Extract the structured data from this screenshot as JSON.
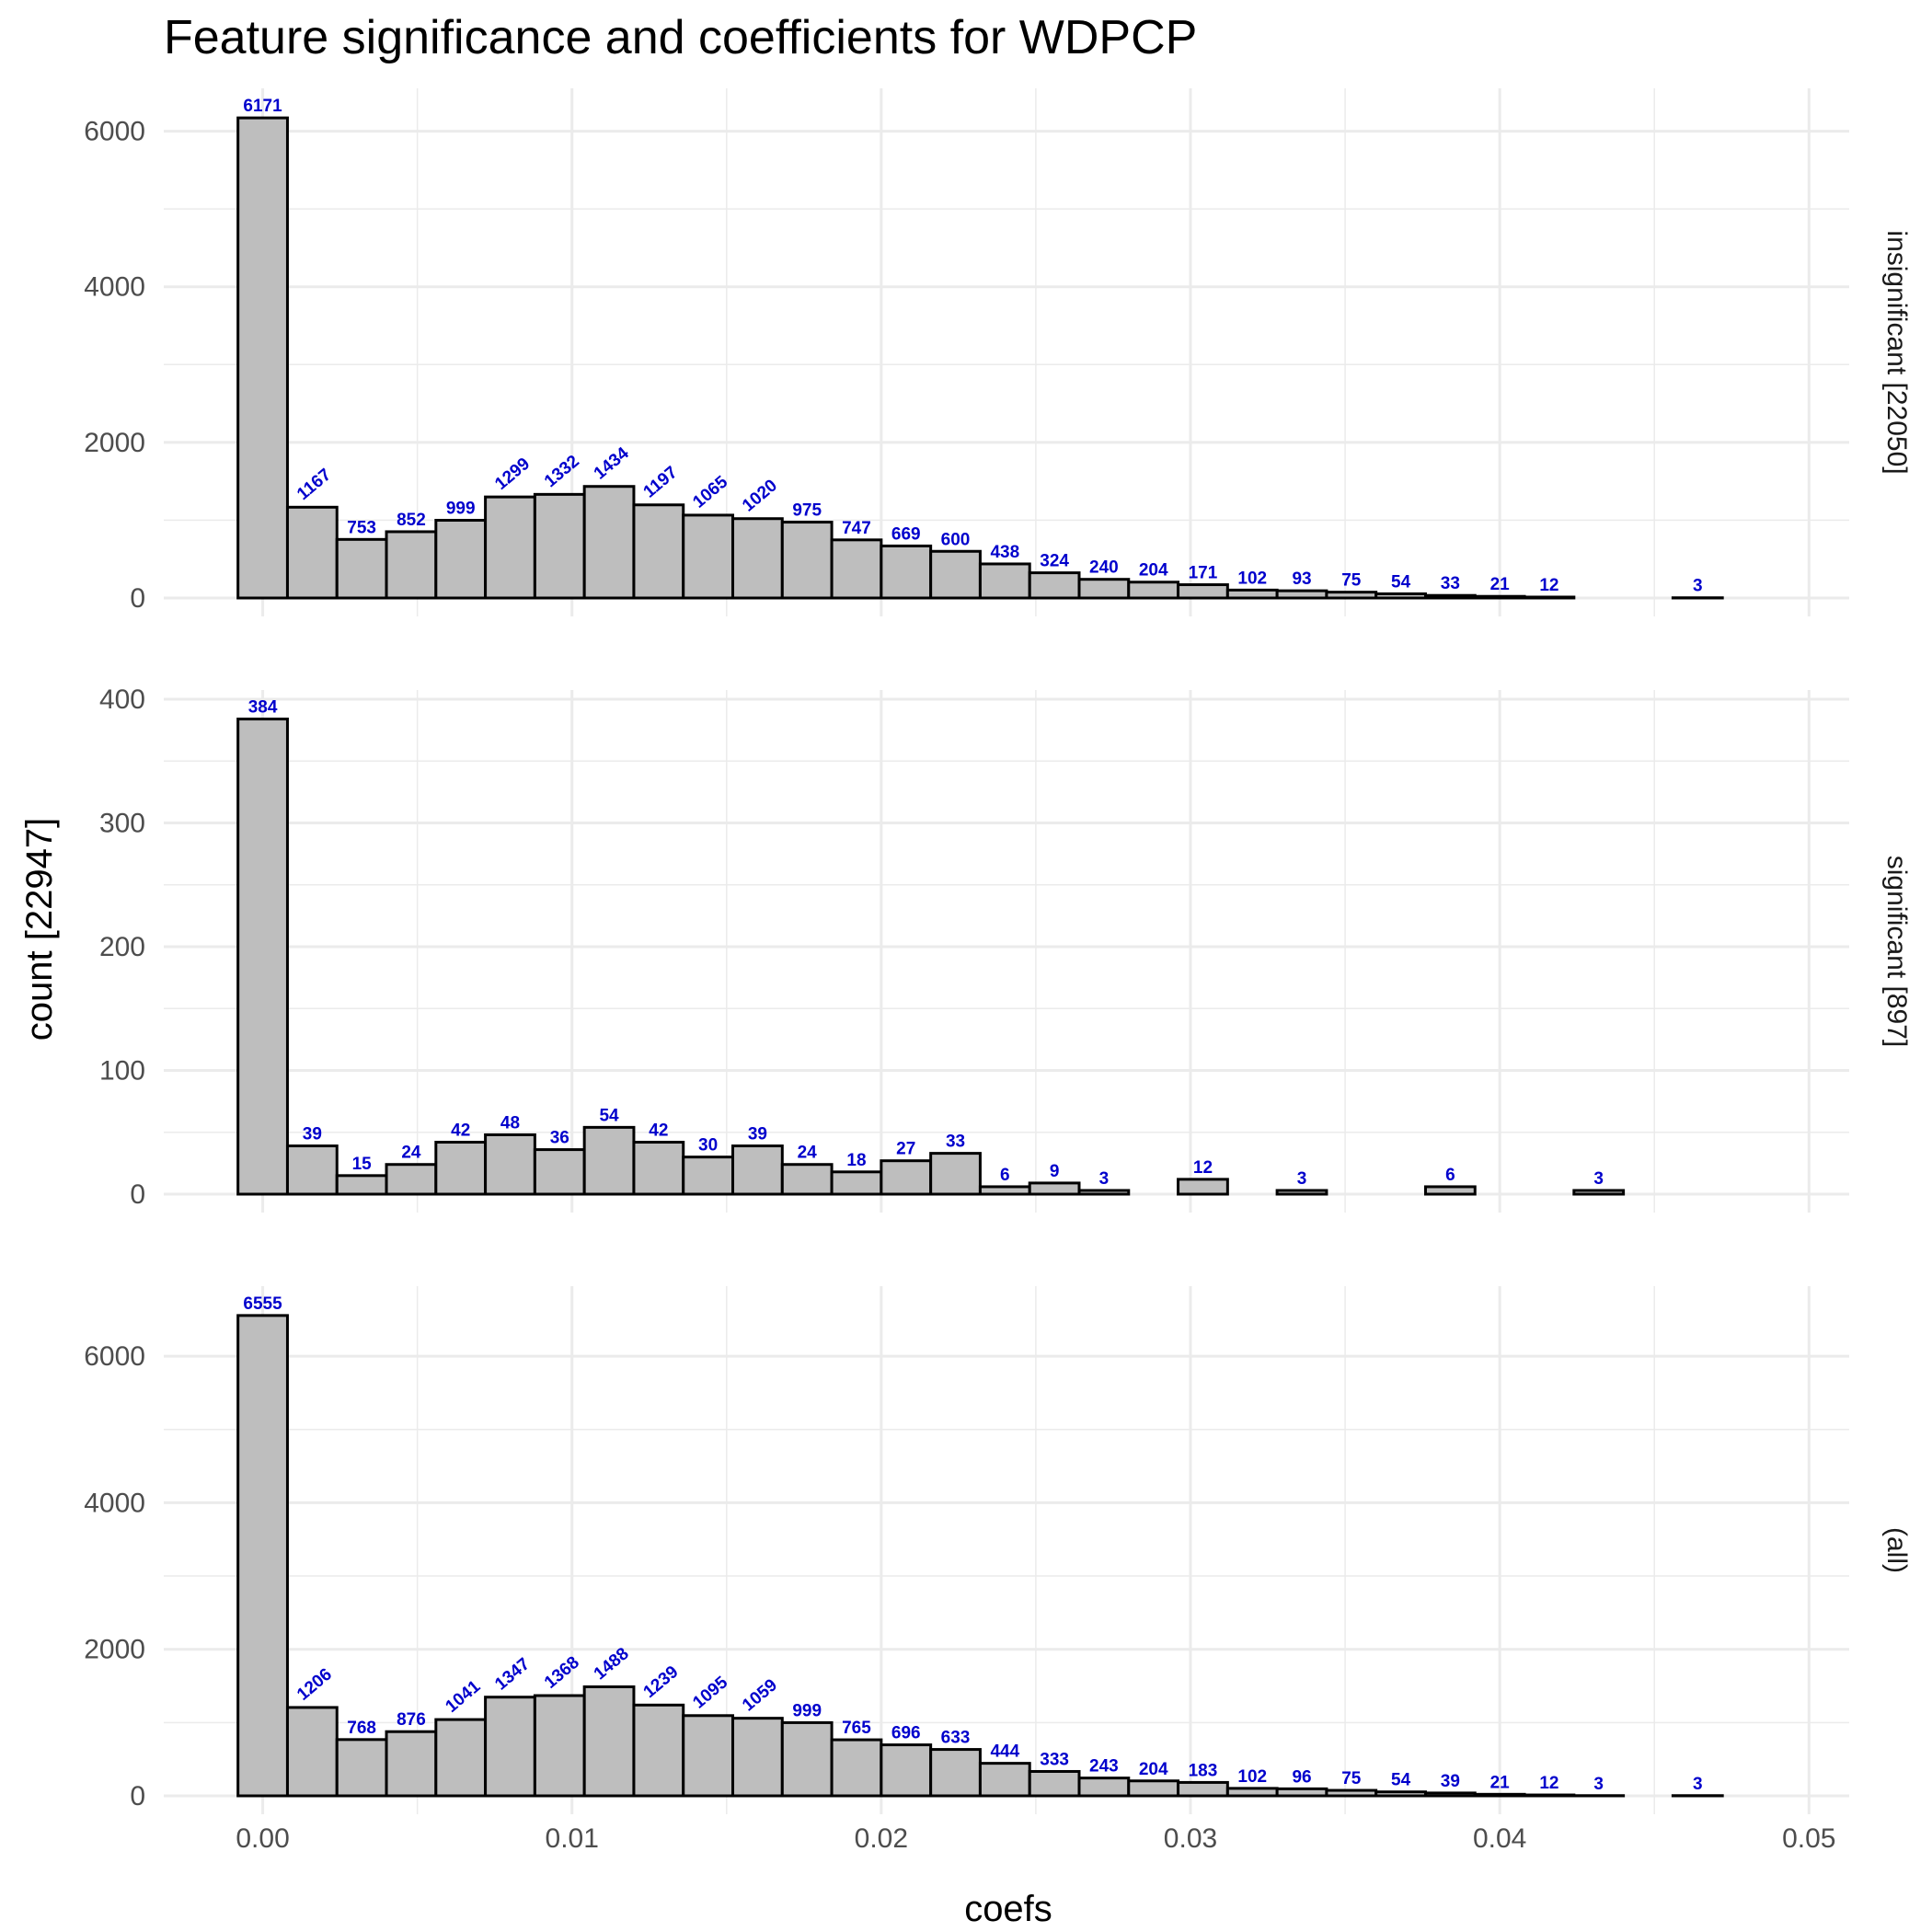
{
  "chart_data": {
    "type": "bar",
    "title": "Feature significance and coefficients for WDPCP",
    "xlabel": "coefs",
    "ylabel": "count [22947]",
    "bin_width": 0.0016,
    "x_first_bin_center": 0.0,
    "xlim": [
      -0.0032,
      0.0513
    ],
    "x_ticks": [
      "0.00",
      "0.01",
      "0.02",
      "0.03",
      "0.04",
      "0.05"
    ],
    "x_tick_values": [
      0,
      0.01,
      0.02,
      0.03,
      0.04,
      0.05
    ],
    "grid": true,
    "colors": {
      "bar_fill": "#bebebe",
      "bar_stroke": "#000000",
      "label": "#0000cc",
      "grid": "#ebebeb"
    },
    "panels": [
      {
        "strip": "insignificant [22050]",
        "ylim": [
          0,
          6480
        ],
        "y_ticks": [
          "0",
          "2000",
          "4000",
          "6000"
        ],
        "y_tick_values": [
          0,
          2000,
          4000,
          6000
        ],
        "values": [
          6171,
          1167,
          753,
          852,
          999,
          1299,
          1332,
          1434,
          1197,
          1065,
          1020,
          975,
          747,
          669,
          600,
          438,
          324,
          240,
          204,
          171,
          102,
          93,
          75,
          54,
          33,
          21,
          12,
          0,
          0,
          3
        ],
        "labels": [
          "6171",
          "1167",
          "753",
          "852",
          "999",
          "1299",
          "1332",
          "1434",
          "1197",
          "1065",
          "1020",
          "975",
          "747",
          "669",
          "600",
          "438",
          "324",
          "240",
          "204",
          "171",
          "102",
          "93",
          "75",
          "54",
          "33",
          "21",
          "12",
          "",
          "",
          "3"
        ],
        "rotated": [
          false,
          true,
          false,
          false,
          false,
          true,
          true,
          true,
          true,
          true,
          true,
          false,
          false,
          false,
          false,
          false,
          false,
          false,
          false,
          false,
          false,
          false,
          false,
          false,
          false,
          false,
          false,
          false,
          false,
          false
        ]
      },
      {
        "strip": "significant [897]",
        "ylim": [
          0,
          403
        ],
        "y_ticks": [
          "0",
          "100",
          "200",
          "300",
          "400"
        ],
        "y_tick_values": [
          0,
          100,
          200,
          300,
          400
        ],
        "values": [
          384,
          39,
          15,
          24,
          42,
          48,
          36,
          54,
          42,
          30,
          39,
          24,
          18,
          27,
          33,
          6,
          9,
          3,
          0,
          12,
          0,
          3,
          0,
          0,
          6,
          0,
          0,
          3,
          0,
          0
        ],
        "labels": [
          "384",
          "39",
          "15",
          "24",
          "42",
          "48",
          "36",
          "54",
          "42",
          "30",
          "39",
          "24",
          "18",
          "27",
          "33",
          "6",
          "9",
          "3",
          "",
          "12",
          "",
          "3",
          "",
          "",
          "6",
          "",
          "",
          "3",
          "",
          ""
        ],
        "rotated": [
          false,
          false,
          false,
          false,
          false,
          false,
          false,
          false,
          false,
          false,
          false,
          false,
          false,
          false,
          false,
          false,
          false,
          false,
          false,
          false,
          false,
          false,
          false,
          false,
          false,
          false,
          false,
          false,
          false,
          false
        ]
      },
      {
        "strip": "(all)",
        "ylim": [
          0,
          6880
        ],
        "y_ticks": [
          "0",
          "2000",
          "4000",
          "6000"
        ],
        "y_tick_values": [
          0,
          2000,
          4000,
          6000
        ],
        "values": [
          6555,
          1206,
          768,
          876,
          1041,
          1347,
          1368,
          1488,
          1239,
          1095,
          1059,
          999,
          765,
          696,
          633,
          444,
          333,
          243,
          204,
          183,
          102,
          96,
          75,
          54,
          39,
          21,
          12,
          3,
          0,
          3
        ],
        "labels": [
          "6555",
          "1206",
          "768",
          "876",
          "1041",
          "1347",
          "1368",
          "1488",
          "1239",
          "1095",
          "1059",
          "999",
          "765",
          "696",
          "633",
          "444",
          "333",
          "243",
          "204",
          "183",
          "102",
          "96",
          "75",
          "54",
          "39",
          "21",
          "12",
          "3",
          "",
          "3"
        ],
        "rotated": [
          false,
          true,
          false,
          false,
          true,
          true,
          true,
          true,
          true,
          true,
          true,
          false,
          false,
          false,
          false,
          false,
          false,
          false,
          false,
          false,
          false,
          false,
          false,
          false,
          false,
          false,
          false,
          false,
          false,
          false
        ]
      }
    ]
  }
}
